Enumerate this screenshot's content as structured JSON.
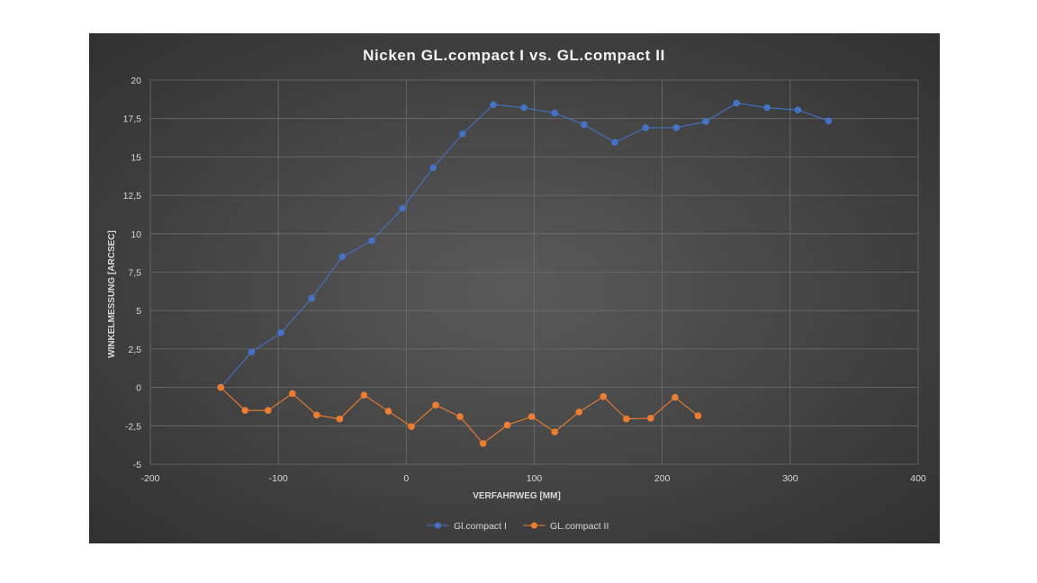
{
  "chart_data": {
    "type": "scatter",
    "title": "Nicken  GL.compact  I vs.  GL.compact  II",
    "xlabel": "VERFAHRWEG [MM]",
    "ylabel": "WINKELMESSUNG [ARCSEC]",
    "xlim": [
      -200,
      400
    ],
    "ylim": [
      -5,
      20
    ],
    "x_ticks": [
      -200,
      -100,
      0,
      100,
      200,
      300,
      400
    ],
    "x_tick_labels": [
      "-200",
      "-100",
      "0",
      "100",
      "200",
      "300",
      "400"
    ],
    "y_ticks": [
      -5,
      -2.5,
      0,
      2.5,
      5,
      7.5,
      10,
      12.5,
      15,
      17.5,
      20
    ],
    "y_tick_labels": [
      "-5",
      "-2,5",
      "0",
      "2,5",
      "5",
      "7,5",
      "10",
      "12,5",
      "15",
      "17,5",
      "20"
    ],
    "grid": true,
    "legend_position": "bottom",
    "series": [
      {
        "name": "Gl.compact I",
        "color": "#4472c4",
        "x": [
          -145,
          -121,
          -98,
          -74,
          -50,
          -27,
          -3,
          21,
          44,
          68,
          92,
          116,
          139,
          163,
          187,
          211,
          234,
          258,
          282,
          306,
          330
        ],
        "y": [
          0,
          2.3,
          3.55,
          5.8,
          8.5,
          9.55,
          11.65,
          14.3,
          16.5,
          18.4,
          18.2,
          17.85,
          17.1,
          15.95,
          16.9,
          16.9,
          17.3,
          18.5,
          18.2,
          18.05,
          17.35
        ]
      },
      {
        "name": "GL.compact II",
        "color": "#ed7d31",
        "x": [
          -145,
          -126,
          -108,
          -89,
          -70,
          -52,
          -33,
          -14,
          4,
          23,
          42,
          60,
          79,
          98,
          116,
          135,
          154,
          172,
          191,
          210,
          228
        ],
        "y": [
          0,
          -1.5,
          -1.5,
          -0.4,
          -1.8,
          -2.05,
          -0.5,
          -1.55,
          -2.55,
          -1.15,
          -1.9,
          -3.65,
          -2.45,
          -1.9,
          -2.9,
          -1.6,
          -0.6,
          -2.05,
          -2.0,
          -0.65,
          -1.85
        ]
      }
    ]
  }
}
